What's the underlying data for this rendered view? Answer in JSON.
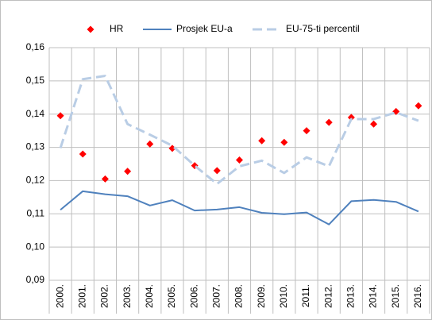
{
  "chart_data": {
    "type": "line",
    "categories": [
      "2000.",
      "2001.",
      "2002.",
      "2003.",
      "2004.",
      "2005.",
      "2006.",
      "2007.",
      "2008.",
      "2009.",
      "2010.",
      "2011.",
      "2012.",
      "2013.",
      "2014.",
      "2015.",
      "2016."
    ],
    "series": [
      {
        "name": "HR",
        "color": "#ff0000",
        "line": "none",
        "marker": "diamond",
        "values": [
          0.1395,
          0.128,
          0.1205,
          0.1228,
          0.131,
          0.1297,
          0.1245,
          0.123,
          0.1262,
          0.132,
          0.1315,
          0.135,
          0.1375,
          0.139,
          0.137,
          0.1408,
          0.1425
        ]
      },
      {
        "name": "Prosjek EU-a",
        "color": "#4f81bd",
        "line": "solid",
        "marker": "none",
        "values": [
          0.1112,
          0.1168,
          0.1159,
          0.1153,
          0.1125,
          0.1141,
          0.111,
          0.1113,
          0.112,
          0.1103,
          0.1099,
          0.1104,
          0.1068,
          0.1138,
          0.1142,
          0.1136,
          0.1107
        ]
      },
      {
        "name": "EU-75-ti percentil",
        "color": "#b9cde5",
        "line": "dashed",
        "marker": "none",
        "values": [
          0.1298,
          0.1505,
          0.1515,
          0.137,
          0.1338,
          0.1305,
          0.1245,
          0.119,
          0.1243,
          0.126,
          0.1223,
          0.127,
          0.1243,
          0.1385,
          0.1385,
          0.1405,
          0.138
        ]
      }
    ],
    "ylim": [
      0.09,
      0.16
    ],
    "yticks": [
      {
        "value": 0.09,
        "label": "0,09"
      },
      {
        "value": 0.1,
        "label": "0,10"
      },
      {
        "value": 0.11,
        "label": "0,11"
      },
      {
        "value": 0.12,
        "label": "0,12"
      },
      {
        "value": 0.13,
        "label": "0,13"
      },
      {
        "value": 0.14,
        "label": "0,14"
      },
      {
        "value": 0.15,
        "label": "0,15"
      },
      {
        "value": 0.16,
        "label": "0,16"
      }
    ],
    "grid": true,
    "legend": "top"
  }
}
